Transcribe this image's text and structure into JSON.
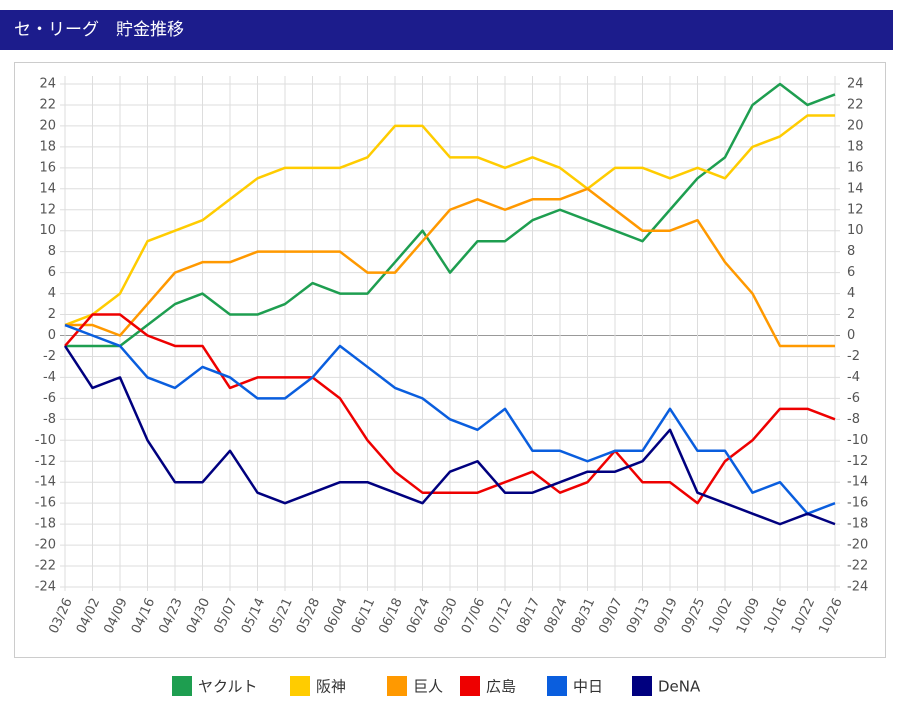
{
  "header": {
    "title": "セ・リーグ　貯金推移"
  },
  "chart_data": {
    "type": "line",
    "categories": [
      "03/26",
      "04/02",
      "04/09",
      "04/16",
      "04/23",
      "04/30",
      "05/07",
      "05/14",
      "05/21",
      "05/28",
      "06/04",
      "06/11",
      "06/18",
      "06/24",
      "06/30",
      "07/06",
      "07/12",
      "08/17",
      "08/24",
      "08/31",
      "09/07",
      "09/13",
      "09/19",
      "09/25",
      "10/02",
      "10/09",
      "10/16",
      "10/22",
      "10/26"
    ],
    "series": [
      {
        "name": "ヤクルト",
        "color": "#1e9e50",
        "values": [
          -1,
          -1,
          -1,
          1,
          3,
          4,
          2,
          2,
          3,
          5,
          4,
          4,
          7,
          10,
          6,
          9,
          9,
          11,
          12,
          11,
          10,
          9,
          12,
          15,
          17,
          22,
          24,
          22,
          23
        ]
      },
      {
        "name": "阪神",
        "color": "#ffcc00",
        "values": [
          1,
          2,
          4,
          9,
          10,
          11,
          13,
          15,
          16,
          16,
          16,
          17,
          20,
          20,
          17,
          17,
          16,
          17,
          16,
          14,
          16,
          16,
          15,
          16,
          15,
          18,
          19,
          21,
          21
        ]
      },
      {
        "name": "巨人",
        "color": "#ff9900",
        "values": [
          1,
          1,
          0,
          3,
          6,
          7,
          7,
          8,
          8,
          8,
          8,
          6,
          6,
          9,
          12,
          13,
          12,
          13,
          13,
          14,
          12,
          10,
          10,
          11,
          7,
          4,
          -1,
          -1,
          -1
        ]
      },
      {
        "name": "広島",
        "color": "#ee0000",
        "values": [
          -1,
          2,
          2,
          0,
          -1,
          -1,
          -5,
          -4,
          -4,
          -4,
          -6,
          -10,
          -13,
          -15,
          -15,
          -15,
          -14,
          -13,
          -15,
          -14,
          -11,
          -14,
          -14,
          -16,
          -12,
          -10,
          -7,
          -7,
          -8
        ]
      },
      {
        "name": "中日",
        "color": "#0a5ede",
        "values": [
          1,
          0,
          -1,
          -4,
          -5,
          -3,
          -4,
          -6,
          -6,
          -4,
          -1,
          -3,
          -5,
          -6,
          -8,
          -9,
          -7,
          -11,
          -11,
          -12,
          -11,
          -11,
          -7,
          -11,
          -11,
          -15,
          -14,
          -17,
          -16
        ]
      },
      {
        "name": "DeNA",
        "color": "#00007f",
        "values": [
          -1,
          -5,
          -4,
          -10,
          -14,
          -14,
          -11,
          -15,
          -16,
          -15,
          -14,
          -14,
          -15,
          -16,
          -13,
          -12,
          -15,
          -15,
          -14,
          -13,
          -13,
          -12,
          -9,
          -15,
          -16,
          -17,
          -18,
          -17,
          -18
        ]
      }
    ],
    "ylim": [
      -24,
      24
    ],
    "yticks": [
      -24,
      -22,
      -20,
      -18,
      -16,
      -14,
      -12,
      -10,
      -8,
      -6,
      -4,
      -2,
      0,
      2,
      4,
      6,
      8,
      10,
      12,
      14,
      16,
      18,
      20,
      22,
      24
    ],
    "grid": true,
    "legend": "bottom"
  }
}
